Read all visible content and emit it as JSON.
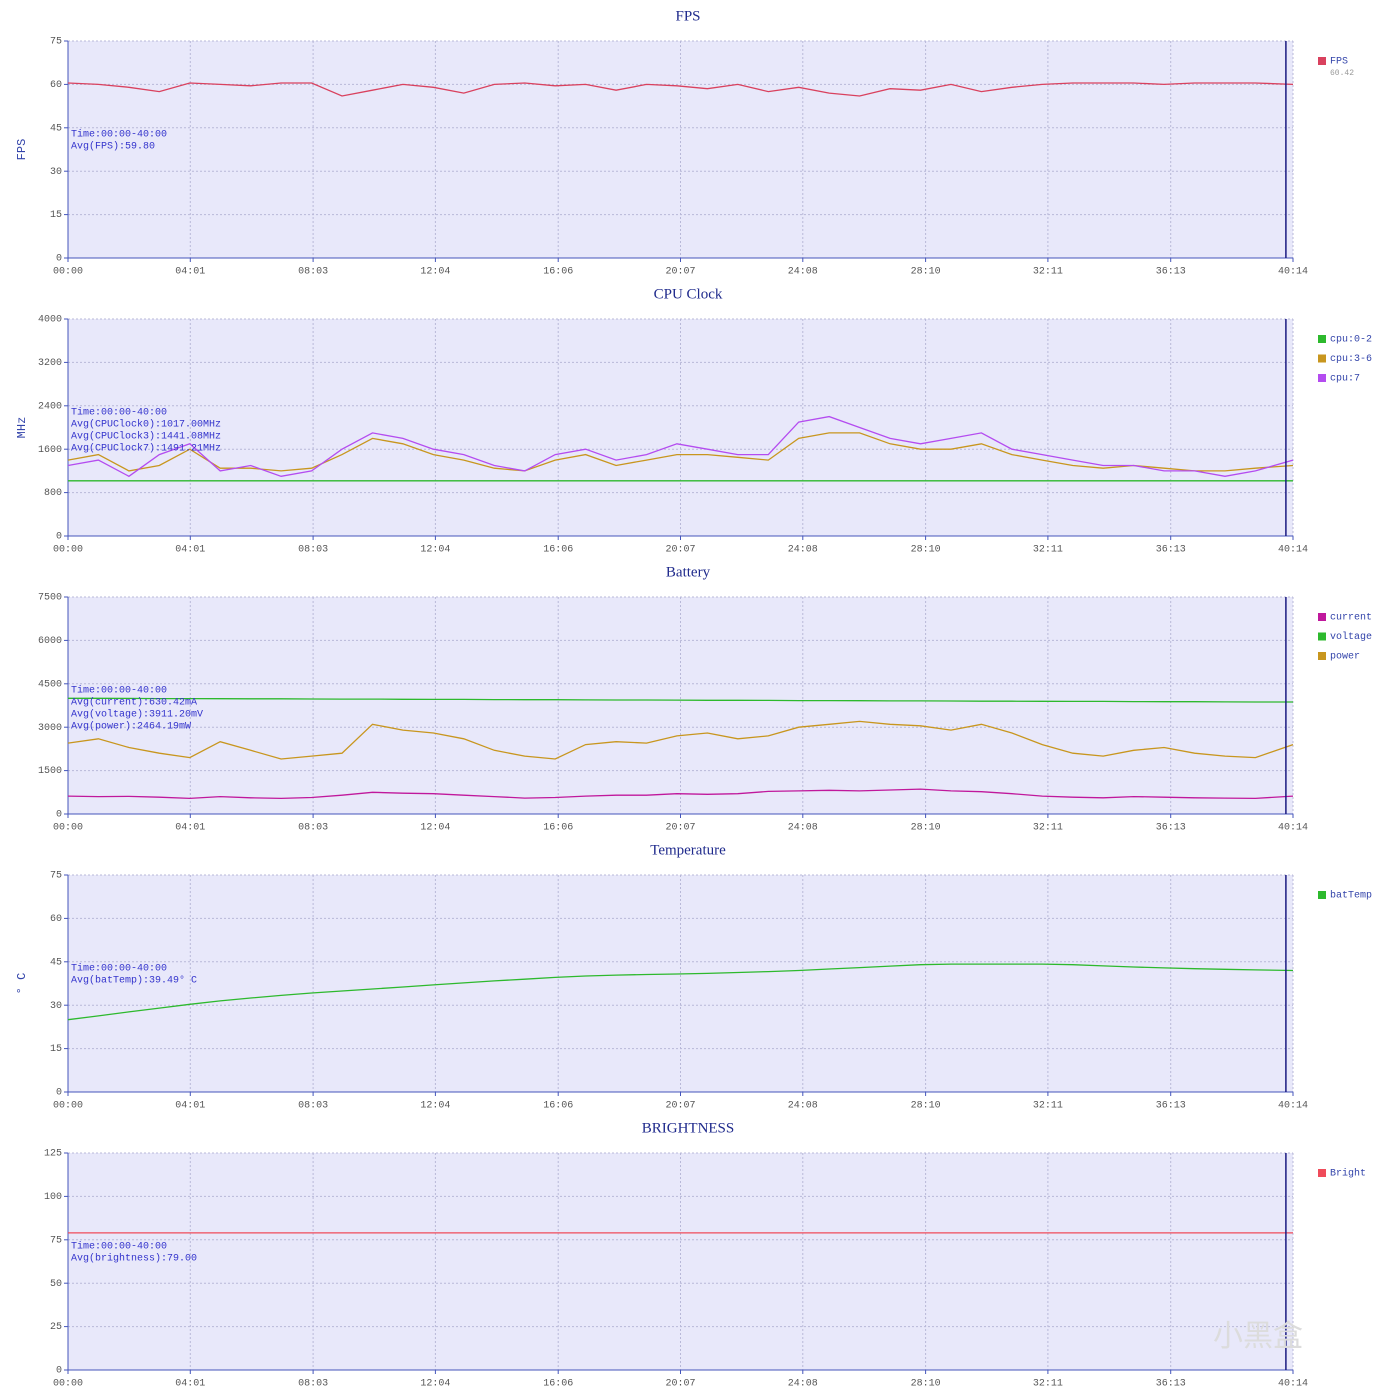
{
  "chart_data": [
    {
      "type": "line",
      "title": "FPS",
      "y_label": "FPS",
      "xlim": [
        0,
        2414
      ],
      "xticks": [
        {
          "value": 0,
          "label": "00:00"
        },
        {
          "value": 241,
          "label": "04:01"
        },
        {
          "value": 483,
          "label": "08:03"
        },
        {
          "value": 724,
          "label": "12:04"
        },
        {
          "value": 966,
          "label": "16:06"
        },
        {
          "value": 1207,
          "label": "20:07"
        },
        {
          "value": 1448,
          "label": "24:08"
        },
        {
          "value": 1690,
          "label": "28:10"
        },
        {
          "value": 1931,
          "label": "32:11"
        },
        {
          "value": 2173,
          "label": "36:13"
        },
        {
          "value": 2414,
          "label": "40:14"
        }
      ],
      "ylim": [
        0,
        75
      ],
      "yticks": [
        0,
        15,
        30,
        45,
        60,
        75
      ],
      "grid": true,
      "cursor": 2400,
      "annotations": [
        "Time:00:00-40:00",
        "Avg(FPS):59.80"
      ],
      "x": [
        0,
        60,
        120,
        180,
        240,
        300,
        360,
        420,
        480,
        540,
        600,
        660,
        720,
        780,
        840,
        900,
        960,
        1020,
        1080,
        1140,
        1200,
        1260,
        1320,
        1380,
        1440,
        1500,
        1560,
        1620,
        1680,
        1740,
        1800,
        1860,
        1920,
        1980,
        2040,
        2100,
        2160,
        2220,
        2280,
        2340,
        2414
      ],
      "series": [
        {
          "name": "FPS",
          "color": "#d9415e",
          "legend_value": 60.42,
          "values": [
            60.5,
            60,
            59,
            57.5,
            60.5,
            60,
            59.5,
            60.5,
            60.5,
            56,
            58,
            60,
            59,
            57,
            60,
            60.5,
            59.5,
            60,
            58,
            60,
            59.5,
            58.5,
            60,
            57.5,
            59,
            57,
            56,
            58.5,
            58,
            60,
            57.5,
            59,
            60,
            60.5,
            60.5,
            60.5,
            60,
            60.5,
            60.5,
            60.5,
            60
          ]
        }
      ]
    },
    {
      "type": "line",
      "title": "CPU Clock",
      "y_label": "MHz",
      "xlim": [
        0,
        2414
      ],
      "xticks": [
        {
          "value": 0,
          "label": "00:00"
        },
        {
          "value": 241,
          "label": "04:01"
        },
        {
          "value": 483,
          "label": "08:03"
        },
        {
          "value": 724,
          "label": "12:04"
        },
        {
          "value": 966,
          "label": "16:06"
        },
        {
          "value": 1207,
          "label": "20:07"
        },
        {
          "value": 1448,
          "label": "24:08"
        },
        {
          "value": 1690,
          "label": "28:10"
        },
        {
          "value": 1931,
          "label": "32:11"
        },
        {
          "value": 2173,
          "label": "36:13"
        },
        {
          "value": 2414,
          "label": "40:14"
        }
      ],
      "ylim": [
        0,
        4000
      ],
      "yticks": [
        0,
        800,
        1600,
        2400,
        3200,
        4000
      ],
      "grid": true,
      "cursor": 2400,
      "annotations": [
        "Time:00:00-40:00",
        "Avg(CPUClock0):1017.00MHz",
        "Avg(CPUClock3):1441.08MHz",
        "Avg(CPUClock7):1491.21MHz"
      ],
      "x": [
        0,
        60,
        120,
        180,
        240,
        300,
        360,
        420,
        480,
        540,
        600,
        660,
        720,
        780,
        840,
        900,
        960,
        1020,
        1080,
        1140,
        1200,
        1260,
        1320,
        1380,
        1440,
        1500,
        1560,
        1620,
        1680,
        1740,
        1800,
        1860,
        1920,
        1980,
        2040,
        2100,
        2160,
        2220,
        2280,
        2340,
        2414
      ],
      "series": [
        {
          "name": "cpu:0-2",
          "color": "#2db92d",
          "values": [
            1017,
            1017,
            1017,
            1017,
            1017,
            1017,
            1017,
            1017,
            1017,
            1017,
            1017,
            1017,
            1017,
            1017,
            1017,
            1017,
            1017,
            1017,
            1017,
            1017,
            1017,
            1017,
            1017,
            1017,
            1017,
            1017,
            1017,
            1017,
            1017,
            1017,
            1017,
            1017,
            1017,
            1017,
            1017,
            1017,
            1017,
            1017,
            1017,
            1017,
            1017
          ]
        },
        {
          "name": "cpu:3-6",
          "color": "#c8961e",
          "values": [
            1400,
            1500,
            1200,
            1300,
            1600,
            1250,
            1250,
            1200,
            1250,
            1500,
            1800,
            1700,
            1500,
            1400,
            1250,
            1200,
            1400,
            1500,
            1300,
            1400,
            1500,
            1500,
            1450,
            1400,
            1800,
            1900,
            1900,
            1700,
            1600,
            1600,
            1700,
            1500,
            1400,
            1300,
            1250,
            1300,
            1250,
            1200,
            1200,
            1250,
            1300
          ]
        },
        {
          "name": "cpu:7",
          "color": "#b44cf0",
          "values": [
            1300,
            1400,
            1100,
            1500,
            1700,
            1200,
            1300,
            1100,
            1200,
            1600,
            1900,
            1800,
            1600,
            1500,
            1300,
            1200,
            1500,
            1600,
            1400,
            1500,
            1700,
            1600,
            1500,
            1500,
            2100,
            2200,
            2000,
            1800,
            1700,
            1800,
            1900,
            1600,
            1500,
            1400,
            1300,
            1300,
            1200,
            1200,
            1100,
            1200,
            1400
          ]
        }
      ]
    },
    {
      "type": "line",
      "title": "Battery",
      "xlim": [
        0,
        2414
      ],
      "xticks": [
        {
          "value": 0,
          "label": "00:00"
        },
        {
          "value": 241,
          "label": "04:01"
        },
        {
          "value": 483,
          "label": "08:03"
        },
        {
          "value": 724,
          "label": "12:04"
        },
        {
          "value": 966,
          "label": "16:06"
        },
        {
          "value": 1207,
          "label": "20:07"
        },
        {
          "value": 1448,
          "label": "24:08"
        },
        {
          "value": 1690,
          "label": "28:10"
        },
        {
          "value": 1931,
          "label": "32:11"
        },
        {
          "value": 2173,
          "label": "36:13"
        },
        {
          "value": 2414,
          "label": "40:14"
        }
      ],
      "ylim": [
        0,
        7500
      ],
      "yticks": [
        0,
        1500,
        3000,
        4500,
        6000,
        7500
      ],
      "grid": true,
      "cursor": 2400,
      "annotations": [
        "Time:00:00-40:00",
        "Avg(current):630.42mA",
        "Avg(voltage):3911.20mV",
        "Avg(power):2464.19mW"
      ],
      "x": [
        0,
        60,
        120,
        180,
        240,
        300,
        360,
        420,
        480,
        540,
        600,
        660,
        720,
        780,
        840,
        900,
        960,
        1020,
        1080,
        1140,
        1200,
        1260,
        1320,
        1380,
        1440,
        1500,
        1560,
        1620,
        1680,
        1740,
        1800,
        1860,
        1920,
        1980,
        2040,
        2100,
        2160,
        2220,
        2280,
        2340,
        2414
      ],
      "series": [
        {
          "name": "current",
          "color": "#c0189c",
          "values": [
            620,
            600,
            610,
            580,
            540,
            600,
            560,
            540,
            570,
            650,
            750,
            720,
            700,
            650,
            600,
            550,
            570,
            620,
            650,
            650,
            700,
            680,
            700,
            780,
            800,
            820,
            800,
            830,
            860,
            800,
            770,
            700,
            620,
            580,
            560,
            600,
            580,
            560,
            550,
            540,
            620
          ]
        },
        {
          "name": "voltage",
          "color": "#2db92d",
          "values": [
            4000,
            4000,
            3995,
            3990,
            3990,
            3985,
            3980,
            3980,
            3975,
            3970,
            3970,
            3965,
            3960,
            3960,
            3955,
            3950,
            3950,
            3945,
            3940,
            3940,
            3935,
            3930,
            3930,
            3925,
            3920,
            3920,
            3915,
            3910,
            3910,
            3905,
            3900,
            3900,
            3895,
            3890,
            3890,
            3885,
            3880,
            3880,
            3875,
            3870,
            3870
          ]
        },
        {
          "name": "power",
          "color": "#c8961e",
          "values": [
            2450,
            2600,
            2300,
            2100,
            1950,
            2500,
            2200,
            1900,
            2000,
            2100,
            3100,
            2900,
            2800,
            2600,
            2200,
            2000,
            1900,
            2400,
            2500,
            2450,
            2700,
            2800,
            2600,
            2700,
            3000,
            3100,
            3200,
            3100,
            3050,
            2900,
            3100,
            2800,
            2400,
            2100,
            2000,
            2200,
            2300,
            2100,
            2000,
            1950,
            2400
          ]
        }
      ]
    },
    {
      "type": "line",
      "title": "Temperature",
      "y_label": "° C",
      "xlim": [
        0,
        2414
      ],
      "xticks": [
        {
          "value": 0,
          "label": "00:00"
        },
        {
          "value": 241,
          "label": "04:01"
        },
        {
          "value": 483,
          "label": "08:03"
        },
        {
          "value": 724,
          "label": "12:04"
        },
        {
          "value": 966,
          "label": "16:06"
        },
        {
          "value": 1207,
          "label": "20:07"
        },
        {
          "value": 1448,
          "label": "24:08"
        },
        {
          "value": 1690,
          "label": "28:10"
        },
        {
          "value": 1931,
          "label": "32:11"
        },
        {
          "value": 2173,
          "label": "36:13"
        },
        {
          "value": 2414,
          "label": "40:14"
        }
      ],
      "ylim": [
        0,
        75
      ],
      "yticks": [
        0,
        15,
        30,
        45,
        60,
        75
      ],
      "grid": true,
      "cursor": 2400,
      "annotations": [
        "Time:00:00-40:00",
        "Avg(batTemp):39.49° C"
      ],
      "x": [
        0,
        60,
        120,
        180,
        240,
        300,
        360,
        420,
        480,
        540,
        600,
        660,
        720,
        780,
        840,
        900,
        960,
        1020,
        1080,
        1140,
        1200,
        1260,
        1320,
        1380,
        1440,
        1500,
        1560,
        1620,
        1680,
        1740,
        1800,
        1860,
        1920,
        1980,
        2040,
        2100,
        2160,
        2220,
        2280,
        2340,
        2414
      ],
      "series": [
        {
          "name": "batTemp",
          "color": "#2db92d",
          "values": [
            25,
            26.3,
            27.7,
            29,
            30.3,
            31.5,
            32.5,
            33.4,
            34.2,
            34.9,
            35.6,
            36.3,
            37,
            37.7,
            38.4,
            39,
            39.6,
            40.1,
            40.4,
            40.6,
            40.8,
            41,
            41.3,
            41.6,
            42,
            42.5,
            43,
            43.5,
            44,
            44.2,
            44.2,
            44.2,
            44.2,
            44,
            43.6,
            43.2,
            42.9,
            42.6,
            42.4,
            42.2,
            42
          ]
        }
      ]
    },
    {
      "type": "line",
      "title": "BRIGHTNESS",
      "xlim": [
        0,
        2414
      ],
      "xticks": [
        {
          "value": 0,
          "label": "00:00"
        },
        {
          "value": 241,
          "label": "04:01"
        },
        {
          "value": 483,
          "label": "08:03"
        },
        {
          "value": 724,
          "label": "12:04"
        },
        {
          "value": 966,
          "label": "16:06"
        },
        {
          "value": 1207,
          "label": "20:07"
        },
        {
          "value": 1448,
          "label": "24:08"
        },
        {
          "value": 1690,
          "label": "28:10"
        },
        {
          "value": 1931,
          "label": "32:11"
        },
        {
          "value": 2173,
          "label": "36:13"
        },
        {
          "value": 2414,
          "label": "40:14"
        }
      ],
      "ylim": [
        0,
        125
      ],
      "yticks": [
        0,
        25,
        50,
        75,
        100,
        125
      ],
      "grid": true,
      "cursor": 2400,
      "annotations": [
        "Time:00:00-40:00",
        "Avg(brightness):79.00"
      ],
      "x": [
        0,
        60,
        120,
        180,
        240,
        300,
        360,
        420,
        480,
        540,
        600,
        660,
        720,
        780,
        840,
        900,
        960,
        1020,
        1080,
        1140,
        1200,
        1260,
        1320,
        1380,
        1440,
        1500,
        1560,
        1620,
        1680,
        1740,
        1800,
        1860,
        1920,
        1980,
        2040,
        2100,
        2160,
        2220,
        2280,
        2340,
        2414
      ],
      "series": [
        {
          "name": "Bright",
          "color": "#ef4b5a",
          "values": [
            79,
            79,
            79,
            79,
            79,
            79,
            79,
            79,
            79,
            79,
            79,
            79,
            79,
            79,
            79,
            79,
            79,
            79,
            79,
            79,
            79,
            79,
            79,
            79,
            79,
            79,
            79,
            79,
            79,
            79,
            79,
            79,
            79,
            79,
            79,
            79,
            79,
            79,
            79,
            79,
            79
          ]
        }
      ]
    }
  ],
  "watermark": "小黑盒"
}
